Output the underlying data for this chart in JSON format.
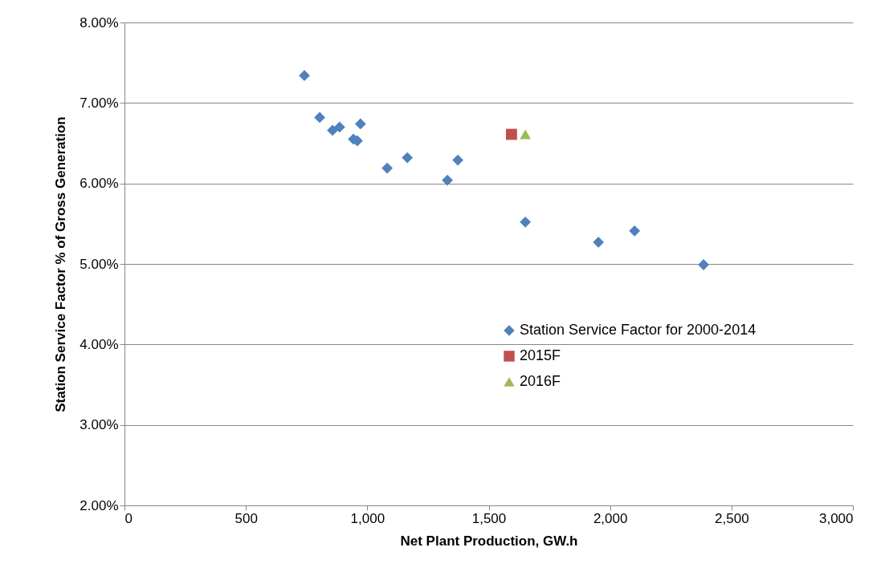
{
  "chart_data": {
    "type": "scatter",
    "xlabel": "Net Plant Production, GW.h",
    "ylabel": "Station Service Factor % of Gross Generation",
    "xlim": [
      0,
      3000
    ],
    "xticks": [
      {
        "value": 0,
        "label": "0"
      },
      {
        "value": 500,
        "label": "500"
      },
      {
        "value": 1000,
        "label": "1,000"
      },
      {
        "value": 1500,
        "label": "1,500"
      },
      {
        "value": 2000,
        "label": "2,000"
      },
      {
        "value": 2500,
        "label": "2,500"
      },
      {
        "value": 3000,
        "label": "3,000"
      }
    ],
    "ylim": [
      2,
      8
    ],
    "yticks": [
      {
        "value": 2,
        "label": "2.00%"
      },
      {
        "value": 3,
        "label": "3.00%"
      },
      {
        "value": 4,
        "label": "4.00%"
      },
      {
        "value": 5,
        "label": "5.00%"
      },
      {
        "value": 6,
        "label": "6.00%"
      },
      {
        "value": 7,
        "label": "7.00%"
      },
      {
        "value": 8,
        "label": "8.00%"
      }
    ],
    "grid": "y",
    "legend": "bottom right",
    "series": [
      {
        "name": "Station Service Factor for 2000-2014",
        "color": "#4f81bd",
        "marker": "diamond",
        "x": [
          741,
          804,
          857,
          886,
          943,
          959,
          972,
          1082,
          1165,
          1373,
          1330,
          1651,
          1952,
          2101,
          2385
        ],
        "values": [
          7.34,
          6.82,
          6.66,
          6.7,
          6.55,
          6.53,
          6.74,
          6.19,
          6.32,
          6.29,
          6.04,
          5.52,
          5.27,
          5.41,
          4.99
        ]
      },
      {
        "name": "2015F",
        "color": "#c0504d",
        "marker": "square",
        "x": [
          1594
        ],
        "values": [
          6.61
        ]
      },
      {
        "name": "2016F",
        "color": "#9bbb59",
        "marker": "triangle",
        "x": [
          1651
        ],
        "values": [
          6.61
        ]
      }
    ]
  }
}
